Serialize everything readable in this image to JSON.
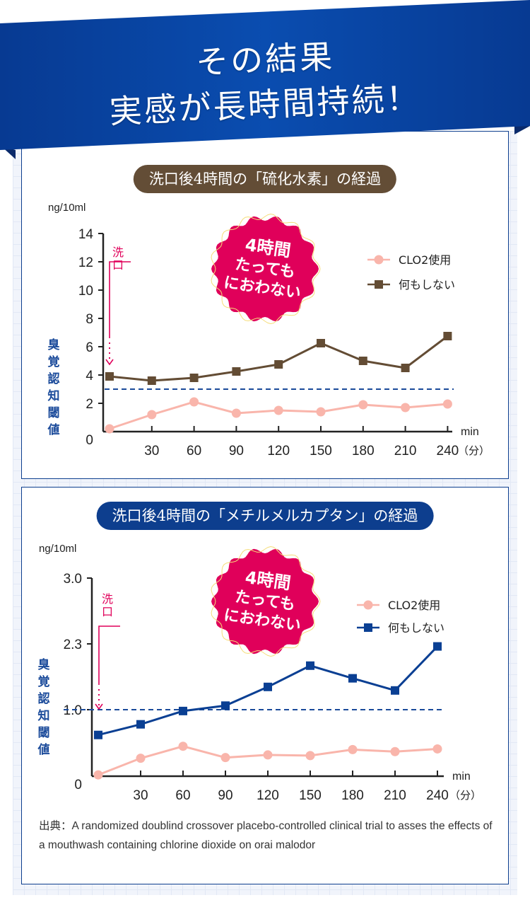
{
  "header": {
    "line1": "その結果",
    "line2": "実感が長時間持続！"
  },
  "colors": {
    "banner": "#0a47a8",
    "banner_dark": "#0a2a6b",
    "brown": "#634c34",
    "blue": "#0a3f93",
    "pink": "#f9b5ab",
    "magenta": "#e0005a",
    "threshold": "#1a4a9a"
  },
  "source": "出典：A randomized doublind crossover placebo-controlled clinical trial to asses the effects of a mouthwash containing chlorine dioxide on orai malodor",
  "chart_data": [
    {
      "type": "line",
      "title": "洗口後4時間の「硫化水素」の経過",
      "ylabel": "ng/10ml",
      "xlabel": "min",
      "xlabel2": "（分）",
      "x": [
        0,
        30,
        60,
        90,
        120,
        150,
        180,
        210,
        240
      ],
      "xticks": [
        "30",
        "60",
        "90",
        "120",
        "150",
        "180",
        "210",
        "240"
      ],
      "yticks": [
        "0",
        "2",
        "4",
        "6",
        "8",
        "10",
        "12",
        "14"
      ],
      "ytick_values": [
        0,
        2,
        4,
        6,
        8,
        10,
        12,
        14
      ],
      "ylim": [
        0,
        14
      ],
      "threshold": {
        "value": 3,
        "label": "臭覚認知閾値"
      },
      "washout_label": "洗口",
      "badge": [
        "4時間",
        "たっても",
        "におわない"
      ],
      "legend_position": "top-right",
      "series": [
        {
          "name": "CLO2使用",
          "marker": "circle",
          "color": "#f9b5ab",
          "values": [
            0.2,
            1.2,
            2.1,
            1.3,
            1.5,
            1.4,
            1.9,
            1.7,
            1.95
          ]
        },
        {
          "name": "何もしない",
          "marker": "square",
          "color": "#634c34",
          "values": [
            3.9,
            3.6,
            3.8,
            4.25,
            4.75,
            6.25,
            5.0,
            4.5,
            6.75
          ]
        }
      ]
    },
    {
      "type": "line",
      "title": "洗口後4時間の「メチルメルカプタン」の経過",
      "ylabel": "ng/10ml",
      "xlabel": "min",
      "xlabel2": "（分）",
      "x": [
        0,
        30,
        60,
        90,
        120,
        150,
        180,
        210,
        240
      ],
      "xticks": [
        "30",
        "60",
        "90",
        "120",
        "150",
        "180",
        "210",
        "240"
      ],
      "yticks": [
        "0",
        "1.0",
        "2.3",
        "3.0"
      ],
      "ytick_values": [
        0,
        1.0,
        2.3,
        3.0
      ],
      "ylim": [
        0,
        3.0
      ],
      "threshold": {
        "value": 1.0,
        "label": "臭覚認知閾値"
      },
      "washout_label": "洗口",
      "badge": [
        "4時間",
        "たっても",
        "におわない"
      ],
      "legend_position": "top-right",
      "series": [
        {
          "name": "CLO2使用",
          "marker": "circle",
          "color": "#f9b5ab",
          "values": [
            0.02,
            0.27,
            0.45,
            0.28,
            0.32,
            0.31,
            0.4,
            0.37,
            0.41
          ]
        },
        {
          "name": "何もしない",
          "marker": "square",
          "color": "#0a3f93",
          "values": [
            0.62,
            0.78,
            0.98,
            1.08,
            1.45,
            1.87,
            1.62,
            1.38,
            2.25
          ]
        }
      ]
    }
  ]
}
